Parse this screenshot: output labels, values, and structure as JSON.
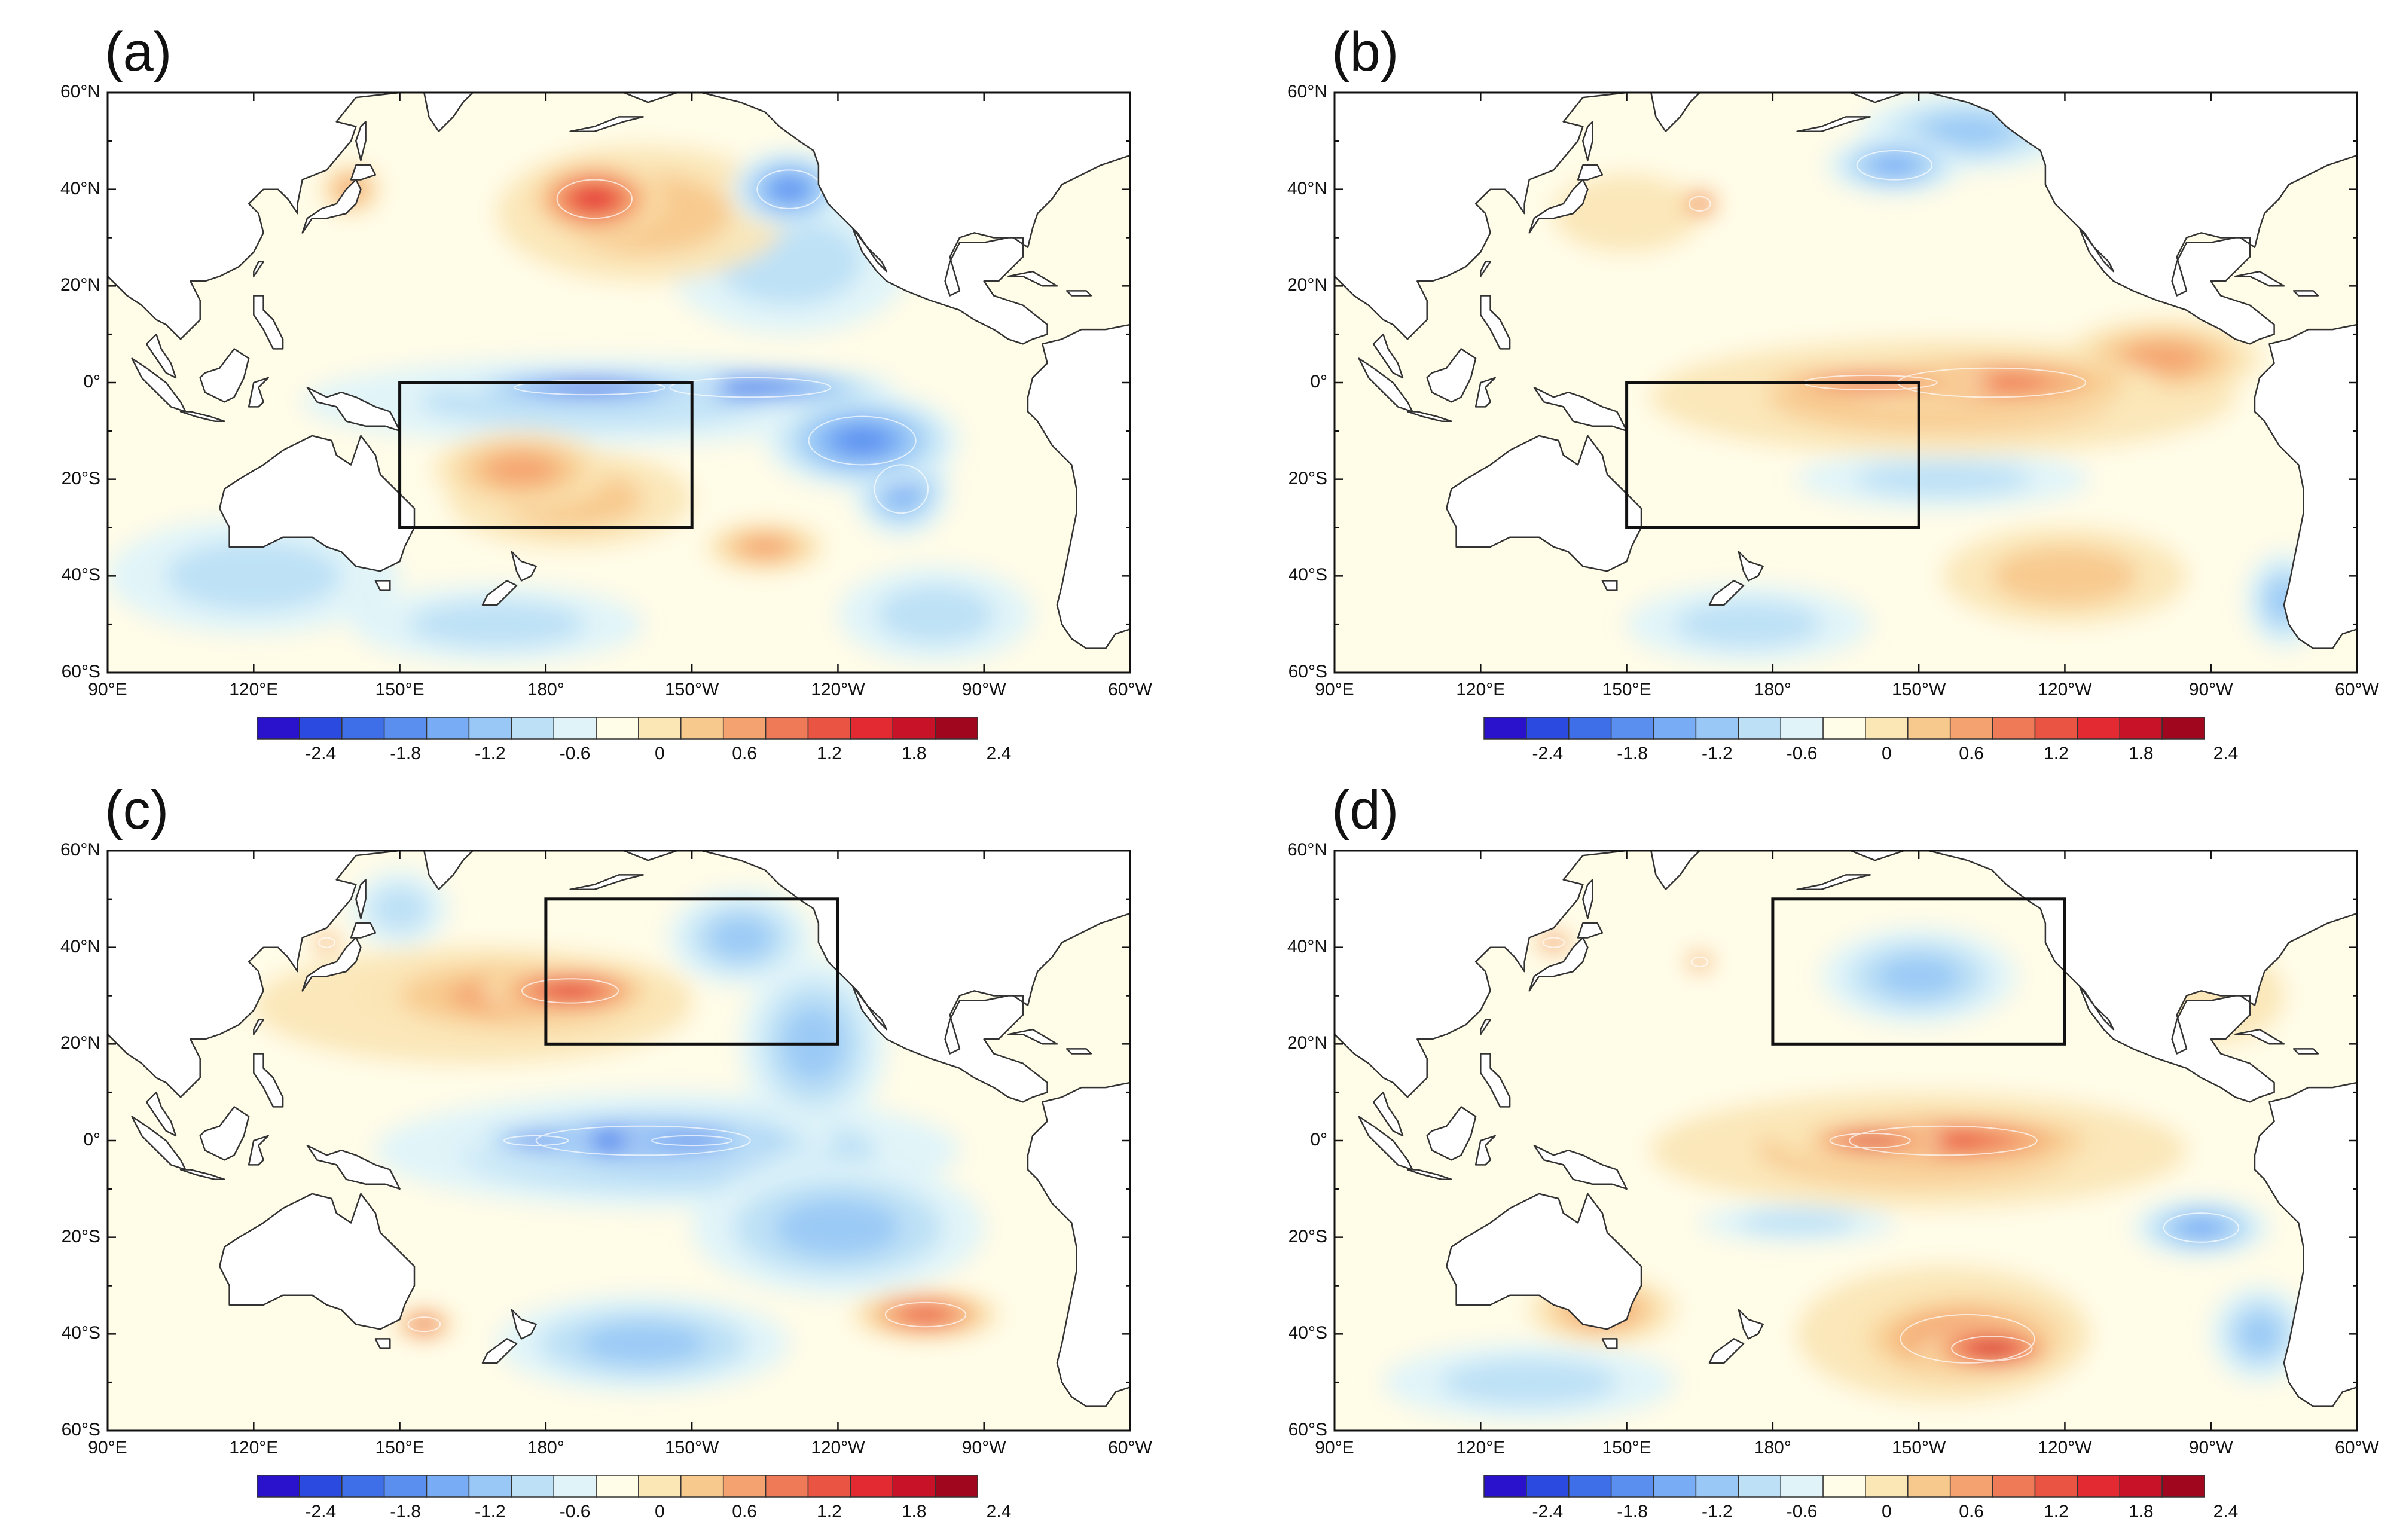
{
  "colors": {
    "ocean_base": "#fffce8",
    "land": "#ffffff",
    "coast": "#333333",
    "box": "#111111",
    "contour": "#ffffff"
  },
  "colorbar": {
    "labels": [
      "-2.4",
      "-1.8",
      "-1.2",
      "-0.6",
      "0",
      "0.6",
      "1.2",
      "1.8",
      "2.4"
    ],
    "colors": [
      "#2a11cc",
      "#2a4ae0",
      "#3f6fe8",
      "#5a8ff0",
      "#78acf4",
      "#99c8f6",
      "#bde0f7",
      "#dff3f9",
      "#fffce8",
      "#fbe6b6",
      "#f8c98d",
      "#f4a270",
      "#ef7a57",
      "#ea5443",
      "#e32a33",
      "#c81227",
      "#a0061d"
    ]
  },
  "axes": {
    "lat_labels": [
      "60°N",
      "40°N",
      "20°N",
      "0°",
      "20°S",
      "40°S",
      "60°S"
    ],
    "lon_labels": [
      "90°E",
      "120°E",
      "150°E",
      "180°",
      "150°W",
      "120°W",
      "90°W",
      "60°W"
    ]
  },
  "panels": [
    {
      "label": "(a)",
      "box": {
        "lon": [
          150,
          210
        ],
        "lat": [
          -30,
          0
        ]
      },
      "features": [
        {
          "lon": 189,
          "lat": -1,
          "rx": 28,
          "ry": 3,
          "v": -2.1
        },
        {
          "lon": 222,
          "lat": -1,
          "rx": 30,
          "ry": 4,
          "v": -1.9
        },
        {
          "lon": 245,
          "lat": -12,
          "rx": 20,
          "ry": 10,
          "v": -1.4
        },
        {
          "lon": 190,
          "lat": -4,
          "rx": 60,
          "ry": 9,
          "v": -0.7
        },
        {
          "lon": 253,
          "lat": -22,
          "rx": 10,
          "ry": 10,
          "v": -1.2
        },
        {
          "lon": 190,
          "lat": 38,
          "rx": 14,
          "ry": 8,
          "v": 1.8
        },
        {
          "lon": 200,
          "lat": 35,
          "rx": 30,
          "ry": 14,
          "v": 0.7
        },
        {
          "lon": 230,
          "lat": 40,
          "rx": 12,
          "ry": 8,
          "v": -1.4
        },
        {
          "lon": 230,
          "lat": 25,
          "rx": 25,
          "ry": 15,
          "v": -0.6
        },
        {
          "lon": 175,
          "lat": -18,
          "rx": 18,
          "ry": 8,
          "v": 1.0
        },
        {
          "lon": 185,
          "lat": -24,
          "rx": 25,
          "ry": 10,
          "v": 0.5
        },
        {
          "lon": 225,
          "lat": -34,
          "rx": 12,
          "ry": 5,
          "v": 1.0
        },
        {
          "lon": 140,
          "lat": 40,
          "rx": 6,
          "ry": 5,
          "v": 0.8
        },
        {
          "lon": 120,
          "lat": -40,
          "rx": 30,
          "ry": 12,
          "v": -0.6
        },
        {
          "lon": 170,
          "lat": -50,
          "rx": 30,
          "ry": 8,
          "v": -0.6
        },
        {
          "lon": 260,
          "lat": -48,
          "rx": 20,
          "ry": 10,
          "v": -0.7
        }
      ]
    },
    {
      "label": "(b)",
      "box": {
        "lon": [
          150,
          210
        ],
        "lat": [
          -30,
          0
        ]
      },
      "features": [
        {
          "lon": 200,
          "lat": 0,
          "rx": 25,
          "ry": 3,
          "v": 1.4
        },
        {
          "lon": 225,
          "lat": 0,
          "rx": 35,
          "ry": 6,
          "v": 1.2
        },
        {
          "lon": 215,
          "lat": -3,
          "rx": 60,
          "ry": 12,
          "v": 0.6
        },
        {
          "lon": 260,
          "lat": 5,
          "rx": 20,
          "ry": 8,
          "v": 0.8
        },
        {
          "lon": 165,
          "lat": 37,
          "rx": 4,
          "ry": 3,
          "v": 1.6
        },
        {
          "lon": 205,
          "lat": 45,
          "rx": 14,
          "ry": 6,
          "v": -1.2
        },
        {
          "lon": 220,
          "lat": 52,
          "rx": 22,
          "ry": 8,
          "v": -0.8
        },
        {
          "lon": 240,
          "lat": -40,
          "rx": 25,
          "ry": 10,
          "v": 0.5
        },
        {
          "lon": 215,
          "lat": -20,
          "rx": 30,
          "ry": 6,
          "v": -0.5
        },
        {
          "lon": 175,
          "lat": -50,
          "rx": 25,
          "ry": 8,
          "v": -0.6
        },
        {
          "lon": 285,
          "lat": -45,
          "rx": 8,
          "ry": 10,
          "v": -0.8
        },
        {
          "lon": 150,
          "lat": 35,
          "rx": 15,
          "ry": 8,
          "v": 0.4
        }
      ]
    },
    {
      "label": "(c)",
      "box": {
        "lon": [
          180,
          240
        ],
        "lat": [
          20,
          50
        ]
      },
      "features": [
        {
          "lon": 178,
          "lat": 0,
          "rx": 12,
          "ry": 2,
          "v": -2.2
        },
        {
          "lon": 210,
          "lat": 0,
          "rx": 15,
          "ry": 2,
          "v": -2.2
        },
        {
          "lon": 200,
          "lat": 0,
          "rx": 40,
          "ry": 6,
          "v": -1.7
        },
        {
          "lon": 205,
          "lat": -2,
          "rx": 60,
          "ry": 12,
          "v": -0.8
        },
        {
          "lon": 240,
          "lat": -18,
          "rx": 30,
          "ry": 14,
          "v": -0.8
        },
        {
          "lon": 185,
          "lat": 31,
          "rx": 18,
          "ry": 5,
          "v": 1.7
        },
        {
          "lon": 175,
          "lat": 30,
          "rx": 35,
          "ry": 9,
          "v": 0.8
        },
        {
          "lon": 165,
          "lat": 28,
          "rx": 45,
          "ry": 12,
          "v": 0.4
        },
        {
          "lon": 220,
          "lat": 42,
          "rx": 15,
          "ry": 10,
          "v": -1.0
        },
        {
          "lon": 235,
          "lat": 20,
          "rx": 15,
          "ry": 18,
          "v": -0.8
        },
        {
          "lon": 155,
          "lat": -38,
          "rx": 6,
          "ry": 3,
          "v": 1.6
        },
        {
          "lon": 258,
          "lat": -36,
          "rx": 15,
          "ry": 5,
          "v": 1.4
        },
        {
          "lon": 200,
          "lat": -42,
          "rx": 30,
          "ry": 10,
          "v": -1.0
        },
        {
          "lon": 150,
          "lat": 48,
          "rx": 10,
          "ry": 8,
          "v": -0.6
        },
        {
          "lon": 135,
          "lat": 41,
          "rx": 3,
          "ry": 2,
          "v": 1.3
        }
      ]
    },
    {
      "label": "(d)",
      "box": {
        "lon": [
          180,
          240
        ],
        "lat": [
          20,
          50
        ]
      },
      "features": [
        {
          "lon": 200,
          "lat": 0,
          "rx": 15,
          "ry": 3,
          "v": 2.0
        },
        {
          "lon": 215,
          "lat": 0,
          "rx": 35,
          "ry": 6,
          "v": 1.4
        },
        {
          "lon": 210,
          "lat": -2,
          "rx": 55,
          "ry": 12,
          "v": 0.6
        },
        {
          "lon": 225,
          "lat": -43,
          "rx": 15,
          "ry": 5,
          "v": 2.0
        },
        {
          "lon": 220,
          "lat": -41,
          "rx": 25,
          "ry": 10,
          "v": 1.2
        },
        {
          "lon": 215,
          "lat": -40,
          "rx": 30,
          "ry": 14,
          "v": 0.5
        },
        {
          "lon": 210,
          "lat": 34,
          "rx": 20,
          "ry": 10,
          "v": -1.0
        },
        {
          "lon": 268,
          "lat": -18,
          "rx": 14,
          "ry": 6,
          "v": -1.3
        },
        {
          "lon": 280,
          "lat": -40,
          "rx": 10,
          "ry": 10,
          "v": -0.8
        },
        {
          "lon": 135,
          "lat": 41,
          "rx": 4,
          "ry": 2,
          "v": 1.4
        },
        {
          "lon": 165,
          "lat": 37,
          "rx": 3,
          "ry": 2,
          "v": 1.3
        },
        {
          "lon": 145,
          "lat": -35,
          "rx": 15,
          "ry": 7,
          "v": 0.8
        },
        {
          "lon": 185,
          "lat": -17,
          "rx": 20,
          "ry": 4,
          "v": -0.6
        },
        {
          "lon": 130,
          "lat": -50,
          "rx": 30,
          "ry": 8,
          "v": -0.6
        },
        {
          "lon": 270,
          "lat": 30,
          "rx": 15,
          "ry": 10,
          "v": 0.4
        }
      ]
    }
  ]
}
